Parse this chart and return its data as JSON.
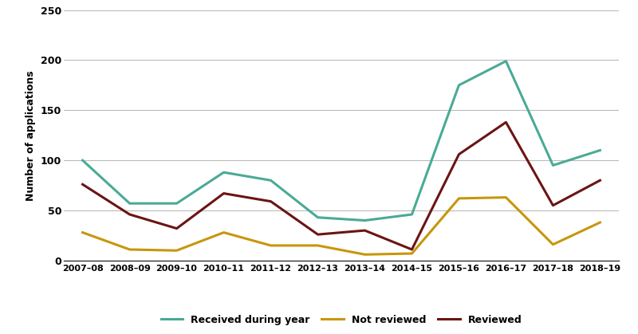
{
  "years": [
    "2007–08",
    "2008–09",
    "2009–10",
    "2010–11",
    "2011–12",
    "2012–13",
    "2013–14",
    "2014–15",
    "2015–16",
    "2016–17",
    "2017–18",
    "2018–19"
  ],
  "received": [
    100,
    57,
    57,
    88,
    80,
    43,
    40,
    46,
    175,
    199,
    95,
    110
  ],
  "not_reviewed": [
    28,
    11,
    10,
    28,
    15,
    15,
    6,
    7,
    62,
    63,
    16,
    38
  ],
  "reviewed": [
    76,
    46,
    32,
    67,
    59,
    26,
    30,
    11,
    106,
    138,
    55,
    80
  ],
  "received_color": "#4aaa96",
  "not_reviewed_color": "#c8960c",
  "reviewed_color": "#6b1414",
  "ylabel": "Number of applications",
  "ylim": [
    0,
    250
  ],
  "yticks": [
    0,
    50,
    100,
    150,
    200,
    250
  ],
  "legend_labels": [
    "Received during year",
    "Not reviewed",
    "Reviewed"
  ],
  "background_color": "#ffffff",
  "grid_color": "#bbbbbb",
  "line_width": 2.2
}
